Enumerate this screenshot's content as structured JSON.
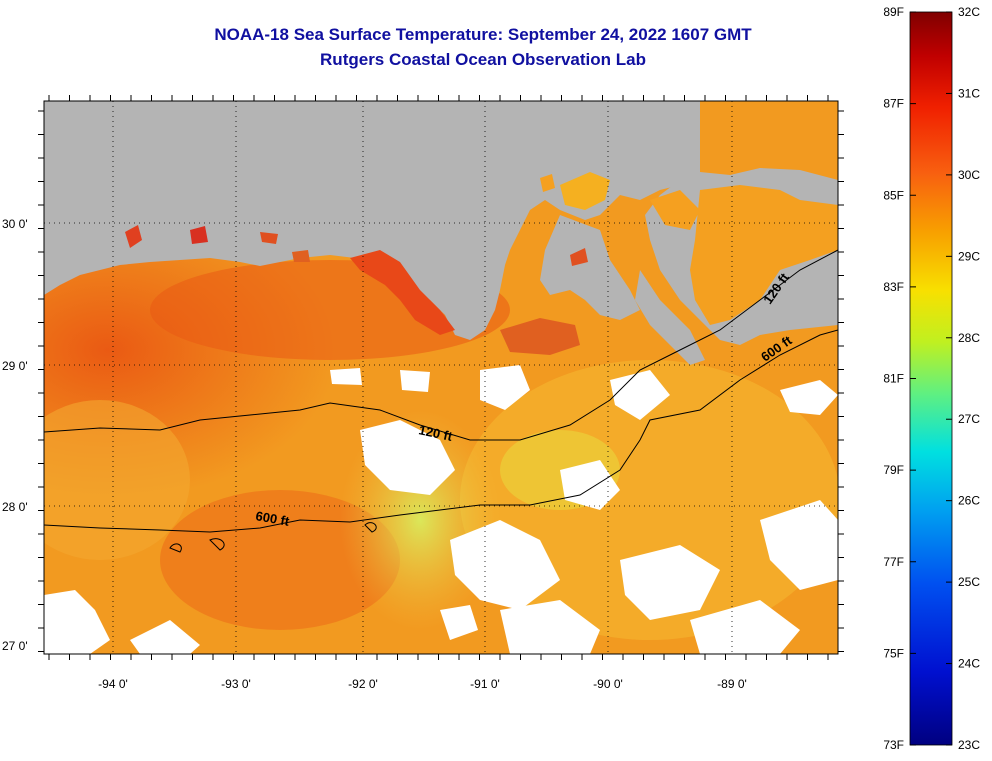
{
  "header": {
    "title": "NOAA-18 Sea Surface Temperature:  September 24, 2022 1607 GMT",
    "subtitle": "Rutgers Coastal Ocean Observation Lab"
  },
  "map": {
    "longitude_ticks": [
      "-94 0'",
      "-93 0'",
      "-92 0'",
      "-91 0'",
      "-90 0'",
      "-89 0'"
    ],
    "latitude_ticks": [
      "30 0'",
      "29 0'",
      "28 0'",
      "27 0'"
    ],
    "contours": [
      {
        "label": "120 ft",
        "depth_ft": 120
      },
      {
        "label": "600 ft",
        "depth_ft": 600
      },
      {
        "label": "120 ft",
        "depth_ft": 120
      },
      {
        "label": "600 ft",
        "depth_ft": 600
      }
    ],
    "colors": {
      "land": "#b4b4b4",
      "cloud": "#ffffff",
      "water_warm": "#f06010",
      "water_mid": "#f8a010",
      "water_cool": "#c8f060"
    }
  },
  "colorbar": {
    "fahrenheit_labels": [
      "89F",
      "87F",
      "85F",
      "83F",
      "81F",
      "79F",
      "77F",
      "75F",
      "73F"
    ],
    "celsius_labels": [
      "32C",
      "31C",
      "30C",
      "29C",
      "28C",
      "27C",
      "26C",
      "25C",
      "24C",
      "23C"
    ],
    "range_c": [
      23,
      32
    ],
    "range_f": [
      73,
      89
    ]
  }
}
